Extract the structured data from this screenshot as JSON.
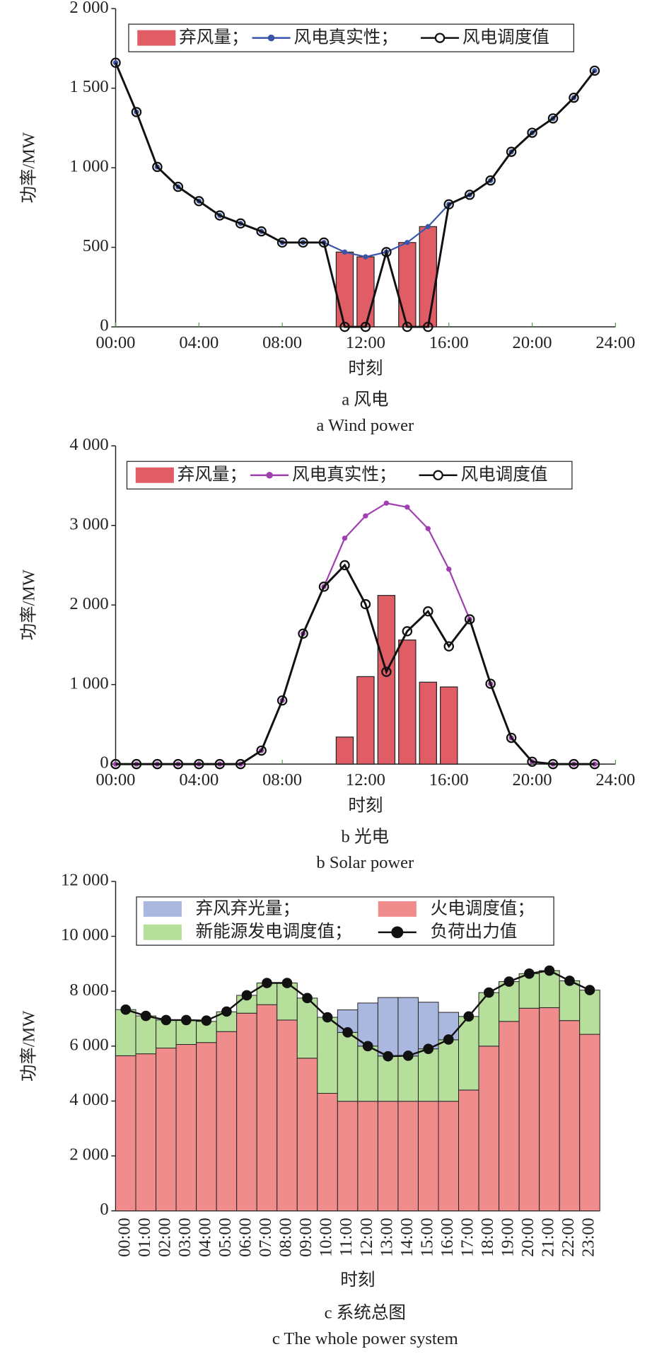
{
  "chart_data": [
    {
      "type": "combo",
      "ylabel": "功率/MW",
      "xlabel": "时刻",
      "caption": "a 风电",
      "caption_en": "a Wind power",
      "x": [
        0,
        1,
        2,
        3,
        4,
        5,
        6,
        7,
        8,
        9,
        10,
        11,
        12,
        13,
        14,
        15,
        16,
        17,
        18,
        19,
        20,
        21,
        22,
        23
      ],
      "xlim": [
        0,
        24
      ],
      "xticks": [
        {
          "value": 0,
          "label": "00:00"
        },
        {
          "value": 4,
          "label": "04:00"
        },
        {
          "value": 8,
          "label": "08:00"
        },
        {
          "value": 12,
          "label": "12:00"
        },
        {
          "value": 16,
          "label": "16:00"
        },
        {
          "value": 20,
          "label": "20:00"
        },
        {
          "value": 24,
          "label": "24:00"
        }
      ],
      "ylim": [
        0,
        2000
      ],
      "yticks": [
        0,
        500,
        {
          "value": 1000,
          "label": "1 000"
        },
        {
          "value": 1500,
          "label": "1 500"
        },
        {
          "value": 2000,
          "label": "2 000"
        }
      ],
      "legend": "top",
      "series": [
        {
          "name": "弃风量；",
          "color": "#e15d66",
          "type": "bar",
          "values": [
            0,
            0,
            0,
            0,
            0,
            0,
            0,
            0,
            0,
            0,
            0,
            470,
            440,
            0,
            530,
            630,
            0,
            0,
            0,
            0,
            0,
            0,
            0,
            0
          ]
        },
        {
          "name": "风电真实性；",
          "color": "#3a55a8",
          "type": "line",
          "marker": "dot",
          "values": [
            1660,
            1350,
            1005,
            880,
            790,
            700,
            650,
            600,
            530,
            530,
            530,
            470,
            440,
            470,
            530,
            630,
            770,
            830,
            920,
            1100,
            1220,
            1310,
            1440,
            1610
          ]
        },
        {
          "name": "风电调度值",
          "color": "#111111",
          "type": "line",
          "marker": "circle",
          "values": [
            1660,
            1350,
            1005,
            880,
            790,
            700,
            650,
            600,
            530,
            530,
            530,
            0,
            0,
            470,
            0,
            0,
            770,
            830,
            920,
            1100,
            1220,
            1310,
            1440,
            1610
          ]
        }
      ]
    },
    {
      "type": "combo",
      "ylabel": "功率/MW",
      "xlabel": "时刻",
      "caption": "b 光电",
      "caption_en": "b Solar power",
      "x": [
        0,
        1,
        2,
        3,
        4,
        5,
        6,
        7,
        8,
        9,
        10,
        11,
        12,
        13,
        14,
        15,
        16,
        17,
        18,
        19,
        20,
        21,
        22,
        23
      ],
      "xlim": [
        0,
        24
      ],
      "xticks": [
        {
          "value": 0,
          "label": "00:00"
        },
        {
          "value": 4,
          "label": "04:00"
        },
        {
          "value": 8,
          "label": "08:00"
        },
        {
          "value": 12,
          "label": "12:00"
        },
        {
          "value": 16,
          "label": "16:00"
        },
        {
          "value": 20,
          "label": "20:00"
        },
        {
          "value": 24,
          "label": "24:00"
        }
      ],
      "ylim": [
        0,
        4000
      ],
      "yticks": [
        0,
        {
          "value": 1000,
          "label": "1 000"
        },
        {
          "value": 2000,
          "label": "2 000"
        },
        {
          "value": 3000,
          "label": "3 000"
        },
        {
          "value": 4000,
          "label": "4 000"
        }
      ],
      "legend": "top",
      "series": [
        {
          "name": "弃风量；",
          "color": "#e15d66",
          "type": "bar",
          "values": [
            0,
            0,
            0,
            0,
            0,
            0,
            0,
            0,
            0,
            0,
            0,
            340,
            1100,
            2120,
            1560,
            1030,
            970,
            0,
            0,
            0,
            0,
            0,
            0,
            0
          ]
        },
        {
          "name": "风电真实性；",
          "color": "#a040b0",
          "type": "line",
          "marker": "dot",
          "values": [
            0,
            0,
            0,
            0,
            0,
            0,
            0,
            170,
            800,
            1640,
            2230,
            2840,
            3120,
            3280,
            3230,
            2960,
            2450,
            1820,
            1010,
            330,
            30,
            0,
            0,
            0
          ]
        },
        {
          "name": "风电调度值",
          "color": "#111111",
          "type": "line",
          "marker": "circle",
          "values": [
            0,
            0,
            0,
            0,
            0,
            0,
            0,
            170,
            800,
            1640,
            2230,
            2500,
            2010,
            1160,
            1670,
            1920,
            1480,
            1820,
            1010,
            330,
            30,
            0,
            0,
            0
          ]
        }
      ]
    },
    {
      "type": "stacked_bar",
      "ylabel": "功率/MW",
      "xlabel": "时刻",
      "caption": "c 系统总图",
      "caption_en": "c The whole power system",
      "categories": [
        "00:00",
        "01:00",
        "02:00",
        "03:00",
        "04:00",
        "05:00",
        "06:00",
        "07:00",
        "08:00",
        "09:00",
        "10:00",
        "11:00",
        "12:00",
        "13:00",
        "14:00",
        "15:00",
        "16:00",
        "17:00",
        "18:00",
        "19:00",
        "20:00",
        "21:00",
        "22:00",
        "23:00"
      ],
      "ylim": [
        0,
        12000
      ],
      "yticks": [
        0,
        {
          "value": 2000,
          "label": "2 000"
        },
        {
          "value": 4000,
          "label": "4 000"
        },
        {
          "value": 6000,
          "label": "6 000"
        },
        {
          "value": 8000,
          "label": "8 000"
        },
        {
          "value": 10000,
          "label": "10 000"
        },
        {
          "value": 12000,
          "label": "12 000"
        }
      ],
      "legend": "top",
      "series": [
        {
          "name": "弃风弃光量；",
          "color": "#aab8e0",
          "type": "bar",
          "stack": 2,
          "values": [
            0,
            0,
            0,
            0,
            0,
            0,
            0,
            0,
            0,
            0,
            0,
            820,
            1570,
            2130,
            2130,
            1700,
            1000,
            0,
            0,
            0,
            0,
            0,
            0,
            0
          ]
        },
        {
          "name": "火电调度值；",
          "color": "#f08c8c",
          "type": "bar",
          "stack": 0,
          "values": [
            5650,
            5720,
            5930,
            6060,
            6130,
            6530,
            7200,
            7510,
            6950,
            5560,
            4280,
            3990,
            3990,
            3990,
            3990,
            3990,
            3990,
            4400,
            6000,
            6900,
            7380,
            7400,
            6930,
            6430
          ]
        },
        {
          "name": "新能源发电调度值；",
          "color": "#b7df9c",
          "type": "bar",
          "stack": 1,
          "values": [
            1680,
            1380,
            1020,
            890,
            770,
            720,
            650,
            790,
            1350,
            2190,
            2770,
            2510,
            2010,
            1650,
            1650,
            1910,
            2240,
            2680,
            1950,
            1450,
            1260,
            1350,
            1450,
            1610
          ]
        },
        {
          "name": "负荷出力值",
          "color": "#111111",
          "type": "line",
          "marker": "filled",
          "values": [
            7330,
            7100,
            6950,
            6950,
            6930,
            7260,
            7850,
            8300,
            8300,
            7750,
            7050,
            6500,
            6000,
            5630,
            5650,
            5900,
            6240,
            7080,
            7950,
            8350,
            8640,
            8750,
            8380,
            8040
          ]
        }
      ]
    }
  ]
}
